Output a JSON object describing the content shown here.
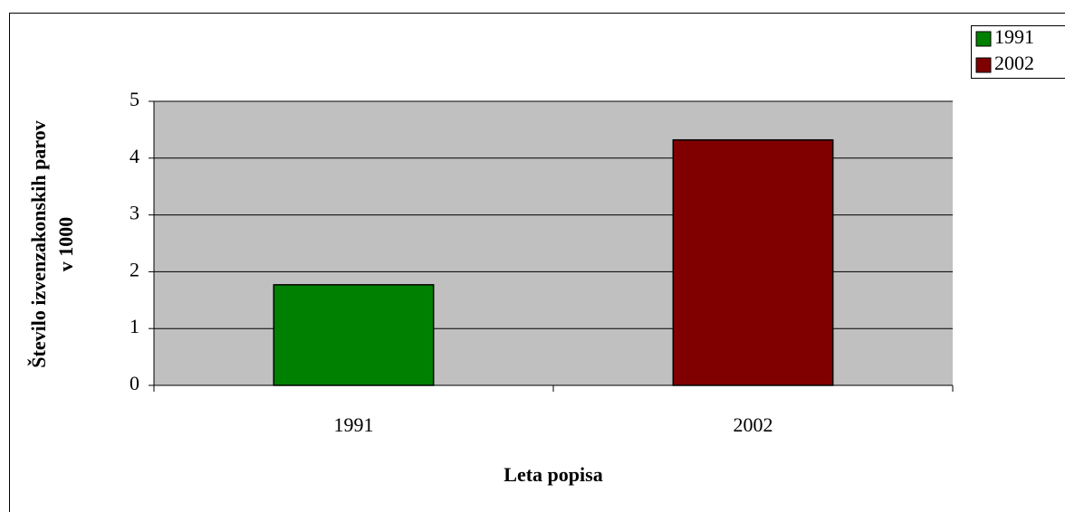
{
  "chart_data": {
    "type": "bar",
    "y_label": [
      "Število izvenzakonskih parov",
      "v 1000"
    ],
    "x_label": "Leta popisa",
    "categories": [
      "1991",
      "2002"
    ],
    "series": [
      {
        "name": "1991",
        "color": "#008000",
        "values": [
          1.77,
          null
        ]
      },
      {
        "name": "2002",
        "color": "#800000",
        "values": [
          null,
          4.32
        ]
      }
    ],
    "ylim": [
      0,
      5
    ],
    "yticks": [
      0,
      1,
      2,
      3,
      4,
      5
    ],
    "grid": true,
    "legend": "top-right"
  }
}
